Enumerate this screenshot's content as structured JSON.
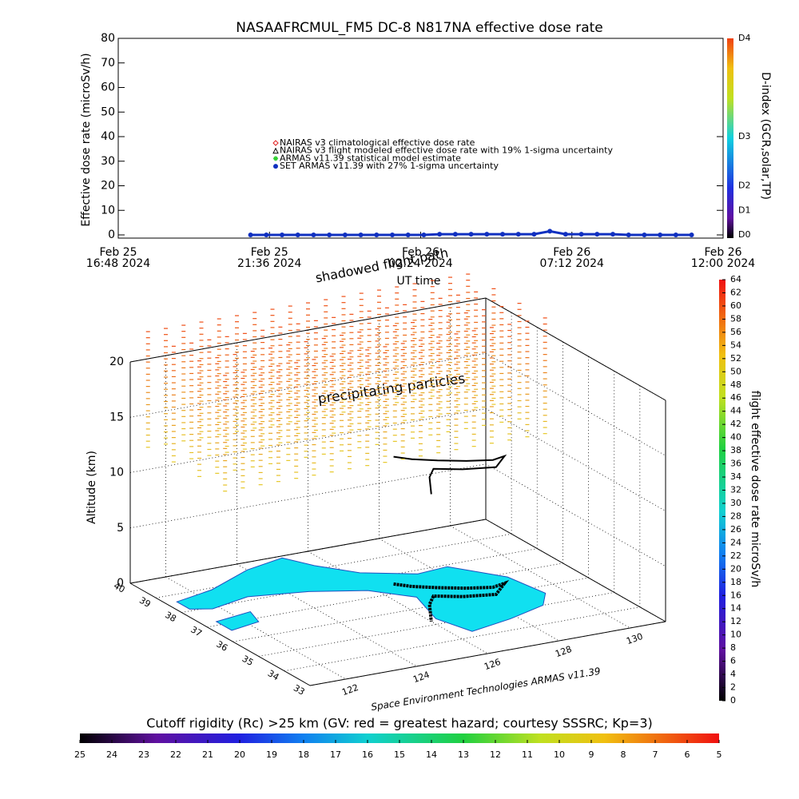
{
  "chart_data": [
    {
      "type": "scatter",
      "title": "NASAAFRCMUL_FM5 DC-8   N817NA effective dose rate",
      "ylabel": "Effective dose rate (microSv/h)",
      "xlabel": "UT time",
      "xlim": [
        "2024-02-25T16:48",
        "2024-02-26T12:00"
      ],
      "xticks": [
        {
          "value": "2024-02-25T16:48",
          "label": "Feb 25\n16:48 2024"
        },
        {
          "value": "2024-02-25T21:36",
          "label": "Feb 25\n21:36 2024"
        },
        {
          "value": "2024-02-26T02:24",
          "label": "Feb 26\n02:24 2024"
        },
        {
          "value": "2024-02-26T07:12",
          "label": "Feb 26\n07:12 2024"
        },
        {
          "value": "2024-02-26T12:00",
          "label": "Feb 26\n12:00 2024"
        }
      ],
      "ylim": [
        -1.3,
        80
      ],
      "yticks": [
        0,
        10,
        20,
        30,
        40,
        50,
        60,
        70,
        80
      ],
      "y2label": "D-index (GCR,solar,TP)",
      "y2lim": [
        -1.3,
        80
      ],
      "y2ticks": [
        {
          "value": 0,
          "label": "D0"
        },
        {
          "value": 10,
          "label": "D1"
        },
        {
          "value": 20,
          "label": "D2"
        },
        {
          "value": 40,
          "label": "D3"
        },
        {
          "value": 80,
          "label": "D4"
        }
      ],
      "legend": [
        {
          "name": "NAIRAS v3 climatological effective dose rate",
          "color": "#e02020",
          "marker": "diamond"
        },
        {
          "name": "NAIRAS v3 flight modeled effective dose rate with 19% 1-sigma uncertainty",
          "color": "#000000",
          "marker": "triangle"
        },
        {
          "name": "ARMAS v11.39 statistical model estimate",
          "color": "#30d030",
          "marker": "asterisk"
        },
        {
          "name": "SET ARMAS v11.39 with 27% 1-sigma uncertainty",
          "color": "#1030c0",
          "marker": "dot"
        }
      ],
      "x": [
        "2024-02-25T21:00",
        "2024-02-25T21:30",
        "2024-02-25T22:00",
        "2024-02-25T22:30",
        "2024-02-25T23:00",
        "2024-02-25T23:30",
        "2024-02-26T00:00",
        "2024-02-26T00:30",
        "2024-02-26T01:00",
        "2024-02-26T01:30",
        "2024-02-26T02:00",
        "2024-02-26T02:30",
        "2024-02-26T03:00",
        "2024-02-26T03:30",
        "2024-02-26T04:00",
        "2024-02-26T04:30",
        "2024-02-26T05:00",
        "2024-02-26T05:30",
        "2024-02-26T06:00",
        "2024-02-26T06:30",
        "2024-02-26T07:00",
        "2024-02-26T07:30",
        "2024-02-26T08:00",
        "2024-02-26T08:30",
        "2024-02-26T09:00",
        "2024-02-26T09:30",
        "2024-02-26T10:00",
        "2024-02-26T10:30",
        "2024-02-26T11:00"
      ],
      "series": [
        {
          "name": "SET ARMAS v11.39 with 27% 1-sigma uncertainty",
          "color": "#1030c0",
          "values": [
            0,
            0,
            0,
            0,
            0,
            0,
            0,
            0,
            0,
            0,
            0,
            0,
            0.3,
            0.3,
            0.3,
            0.3,
            0.3,
            0.3,
            0.3,
            1.5,
            0.3,
            0.3,
            0.3,
            0.3,
            0,
            0,
            0,
            0,
            0
          ]
        }
      ]
    },
    {
      "type": "3d",
      "annotations": [
        "shadowed flight path",
        "precipitating particles"
      ],
      "zlabel": "Altitude (km)",
      "zlim": [
        0,
        20
      ],
      "zticks": [
        0,
        5,
        10,
        15,
        20
      ],
      "ylim": [
        33,
        40
      ],
      "yticks": [
        33,
        34,
        35,
        36,
        37,
        38,
        39,
        40
      ],
      "xlim": [
        121,
        131
      ],
      "xticks": [
        122,
        124,
        126,
        128,
        130
      ],
      "credit": "Space Environment Technologies ARMAS v11.39",
      "colorbar": {
        "label": "flight effective dose rate microSv/h",
        "lim": [
          0,
          64
        ],
        "ticks": [
          0,
          2,
          4,
          6,
          8,
          10,
          12,
          14,
          16,
          18,
          20,
          22,
          24,
          26,
          28,
          30,
          32,
          34,
          36,
          38,
          40,
          42,
          44,
          46,
          48,
          50,
          52,
          54,
          56,
          58,
          60,
          62,
          64
        ]
      },
      "cutoff_colorbar": {
        "title": "Cutoff rigidity (Rc) >25 km (GV: red = greatest hazard; courtesy SSSRC; Kp=3)",
        "lim": [
          25,
          5
        ],
        "ticks": [
          25,
          24,
          23,
          22,
          21,
          20,
          19,
          18,
          17,
          16,
          15,
          14,
          13,
          12,
          11,
          10,
          9,
          8,
          7,
          6,
          5
        ]
      }
    }
  ]
}
